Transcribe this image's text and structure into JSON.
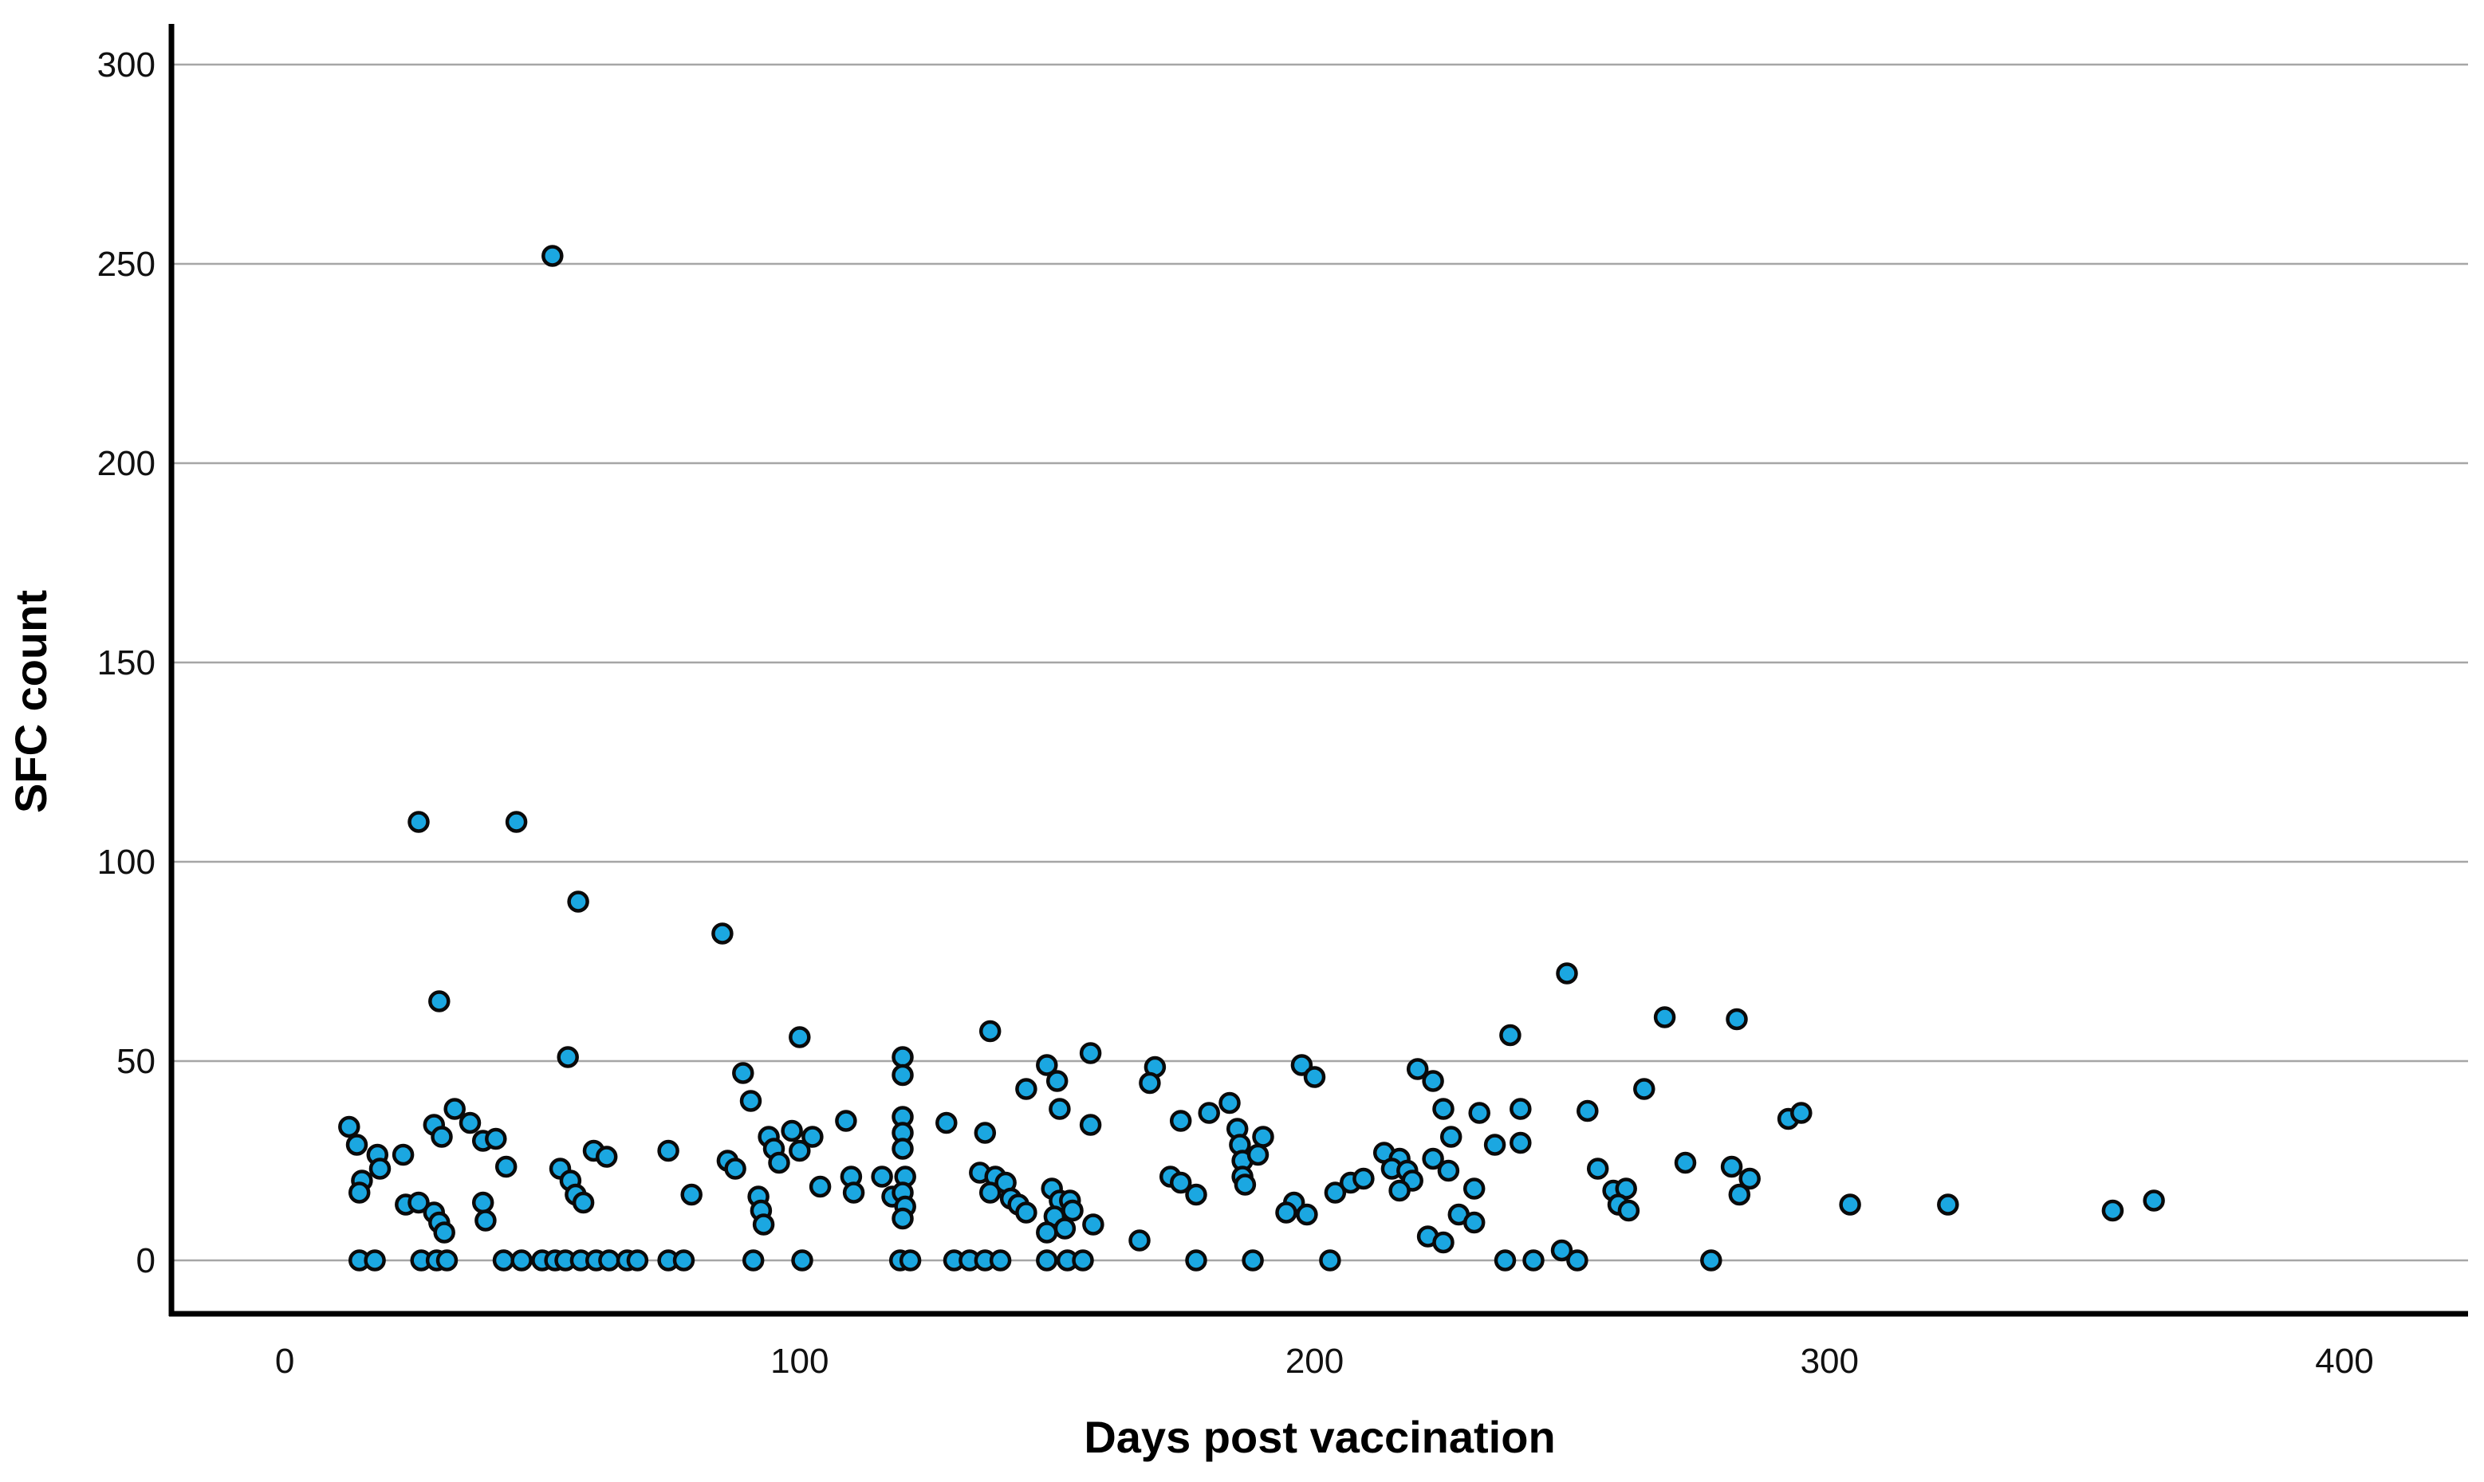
{
  "chart_data": {
    "type": "scatter",
    "title": "",
    "xlabel": "Days post vaccination",
    "ylabel": "SFC count",
    "x_ticks": [
      0,
      100,
      200,
      300,
      400
    ],
    "y_ticks": [
      0,
      50,
      100,
      150,
      200,
      250,
      300
    ],
    "xlim": [
      -22,
      424
    ],
    "ylim": [
      -13.4,
      310.2
    ],
    "grid": "horizontal-only",
    "gridline_color": "#a6a6a6",
    "axis_color": "#000000",
    "point_fill": "#1BA7E1",
    "point_border": "#0a0a0a",
    "legend": "none",
    "points": [
      [
        12.5,
        33.5
      ],
      [
        14,
        29
      ],
      [
        18,
        26.5
      ],
      [
        23,
        26.5
      ],
      [
        18.5,
        23
      ],
      [
        15,
        20
      ],
      [
        14.5,
        17
      ],
      [
        26,
        110
      ],
      [
        45,
        110
      ],
      [
        57,
        90
      ],
      [
        30,
        65
      ],
      [
        55,
        51
      ],
      [
        52,
        252
      ],
      [
        29,
        34
      ],
      [
        33,
        38
      ],
      [
        36,
        34.5
      ],
      [
        38.5,
        30
      ],
      [
        41,
        30.5
      ],
      [
        30.5,
        31
      ],
      [
        43,
        23.5
      ],
      [
        53.5,
        23
      ],
      [
        55.5,
        20
      ],
      [
        56.5,
        16.5
      ],
      [
        60,
        27.5
      ],
      [
        62.5,
        26
      ],
      [
        58,
        14.5
      ],
      [
        23.5,
        14
      ],
      [
        26,
        14.5
      ],
      [
        29,
        12
      ],
      [
        30,
        9.5
      ],
      [
        31,
        7
      ],
      [
        38.5,
        14.5
      ],
      [
        39,
        10
      ],
      [
        74.5,
        27.5
      ],
      [
        79,
        16.5
      ],
      [
        14.5,
        0
      ],
      [
        17.5,
        0
      ],
      [
        26.5,
        0
      ],
      [
        29.5,
        0
      ],
      [
        31.5,
        0
      ],
      [
        42.5,
        0
      ],
      [
        46,
        0
      ],
      [
        50,
        0
      ],
      [
        52.5,
        0
      ],
      [
        54.5,
        0
      ],
      [
        57.5,
        0
      ],
      [
        60.5,
        0
      ],
      [
        63,
        0
      ],
      [
        66.5,
        0
      ],
      [
        68.5,
        0
      ],
      [
        74.5,
        0
      ],
      [
        77.5,
        0
      ],
      [
        85,
        82
      ],
      [
        100,
        56
      ],
      [
        89,
        47
      ],
      [
        90.5,
        40
      ],
      [
        137,
        57.5
      ],
      [
        86,
        25
      ],
      [
        87.5,
        23
      ],
      [
        94,
        31
      ],
      [
        95,
        28
      ],
      [
        96,
        24.5
      ],
      [
        98.5,
        32.5
      ],
      [
        100,
        27.5
      ],
      [
        102.5,
        31
      ],
      [
        92,
        16
      ],
      [
        92.5,
        12.5
      ],
      [
        93,
        9
      ],
      [
        104,
        18.5
      ],
      [
        109,
        35
      ],
      [
        110,
        21
      ],
      [
        110.5,
        17
      ],
      [
        116,
        21
      ],
      [
        118,
        16
      ],
      [
        120,
        51
      ],
      [
        120,
        46.5
      ],
      [
        120,
        36
      ],
      [
        120,
        32
      ],
      [
        120,
        28
      ],
      [
        120.5,
        21
      ],
      [
        120,
        17
      ],
      [
        120.5,
        13.5
      ],
      [
        120,
        10.5
      ],
      [
        128.5,
        34.5
      ],
      [
        136,
        32
      ],
      [
        144,
        43
      ],
      [
        148,
        49
      ],
      [
        150,
        45
      ],
      [
        150.5,
        38
      ],
      [
        135,
        22
      ],
      [
        138,
        21
      ],
      [
        137,
        17
      ],
      [
        140,
        19.5
      ],
      [
        141,
        15.5
      ],
      [
        142.5,
        14
      ],
      [
        144,
        12
      ],
      [
        149,
        18
      ],
      [
        150.5,
        15
      ],
      [
        149.5,
        11
      ],
      [
        151.5,
        8
      ],
      [
        91,
        0
      ],
      [
        100.5,
        0
      ],
      [
        119.5,
        0
      ],
      [
        121.5,
        0
      ],
      [
        130,
        0
      ],
      [
        133,
        0
      ],
      [
        136,
        0
      ],
      [
        139,
        0
      ],
      [
        156.5,
        52
      ],
      [
        169,
        48.5
      ],
      [
        168,
        44.5
      ],
      [
        156.5,
        34
      ],
      [
        152.5,
        15
      ],
      [
        153,
        12.5
      ],
      [
        157,
        9
      ],
      [
        148,
        7
      ],
      [
        172,
        21
      ],
      [
        174,
        19.5
      ],
      [
        177,
        16.5
      ],
      [
        166,
        5
      ],
      [
        174,
        35
      ],
      [
        179.5,
        37
      ],
      [
        183.5,
        39.5
      ],
      [
        185,
        33
      ],
      [
        185.5,
        29
      ],
      [
        186,
        25
      ],
      [
        186,
        21
      ],
      [
        186.5,
        19
      ],
      [
        189,
        26.5
      ],
      [
        190,
        31
      ],
      [
        197.5,
        49
      ],
      [
        200,
        46
      ],
      [
        196,
        14.5
      ],
      [
        198.5,
        11.5
      ],
      [
        194.5,
        12
      ],
      [
        204,
        17
      ],
      [
        207,
        19.5
      ],
      [
        209.5,
        20.5
      ],
      [
        213.5,
        27
      ],
      [
        216.5,
        25.5
      ],
      [
        215,
        23
      ],
      [
        218,
        22.5
      ],
      [
        219,
        20
      ],
      [
        216.5,
        17.5
      ],
      [
        220,
        48
      ],
      [
        223,
        45
      ],
      [
        225,
        38
      ],
      [
        222,
        6
      ],
      [
        225,
        4.5
      ],
      [
        148,
        0
      ],
      [
        152,
        0
      ],
      [
        155,
        0
      ],
      [
        177,
        0
      ],
      [
        188,
        0
      ],
      [
        203,
        0
      ],
      [
        226.5,
        31
      ],
      [
        223,
        25.5
      ],
      [
        226,
        22.5
      ],
      [
        232,
        37
      ],
      [
        240,
        38
      ],
      [
        253,
        37.5
      ],
      [
        264,
        43
      ],
      [
        235,
        29
      ],
      [
        240,
        29.5
      ],
      [
        231,
        18
      ],
      [
        228,
        11.5
      ],
      [
        231,
        9.5
      ],
      [
        255,
        23
      ],
      [
        258,
        17.5
      ],
      [
        260.5,
        18
      ],
      [
        259,
        14
      ],
      [
        261,
        12.5
      ],
      [
        272,
        24.5
      ],
      [
        281,
        23.5
      ],
      [
        284.5,
        20.5
      ],
      [
        282.5,
        16.5
      ],
      [
        292,
        35.5
      ],
      [
        294.5,
        37
      ],
      [
        238,
        56.5
      ],
      [
        249,
        72
      ],
      [
        268,
        61
      ],
      [
        282,
        60.5
      ],
      [
        237,
        0
      ],
      [
        242.5,
        0
      ],
      [
        248,
        2.5
      ],
      [
        251,
        0
      ],
      [
        277,
        0
      ],
      [
        304,
        14
      ],
      [
        323,
        14
      ],
      [
        355,
        12.5
      ],
      [
        363,
        15
      ]
    ]
  }
}
